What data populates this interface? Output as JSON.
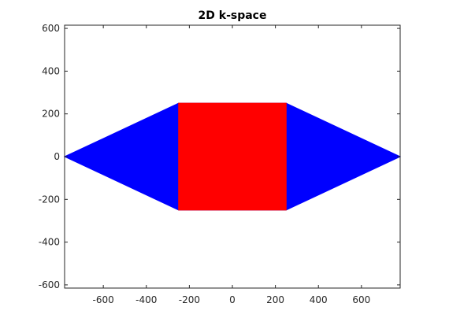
{
  "chart_data": {
    "type": "area",
    "title": "2D k-space",
    "xlabel": "",
    "ylabel": "",
    "xlim": [
      -780,
      780
    ],
    "ylim": [
      -615,
      615
    ],
    "xticks": [
      -600,
      -400,
      -200,
      0,
      200,
      400,
      600
    ],
    "yticks": [
      -600,
      -400,
      -200,
      0,
      200,
      400,
      600
    ],
    "grid": false,
    "legend": "none",
    "series": [
      {
        "color": "#0000ff",
        "polygon": [
          [
            -780,
            0
          ],
          [
            -250,
            250
          ],
          [
            250,
            250
          ],
          [
            780,
            0
          ],
          [
            250,
            -250
          ],
          [
            -250,
            -250
          ]
        ]
      },
      {
        "color": "#ff0000",
        "polygon": [
          [
            -250,
            250
          ],
          [
            250,
            250
          ],
          [
            250,
            -250
          ],
          [
            -250,
            -250
          ]
        ]
      }
    ]
  }
}
